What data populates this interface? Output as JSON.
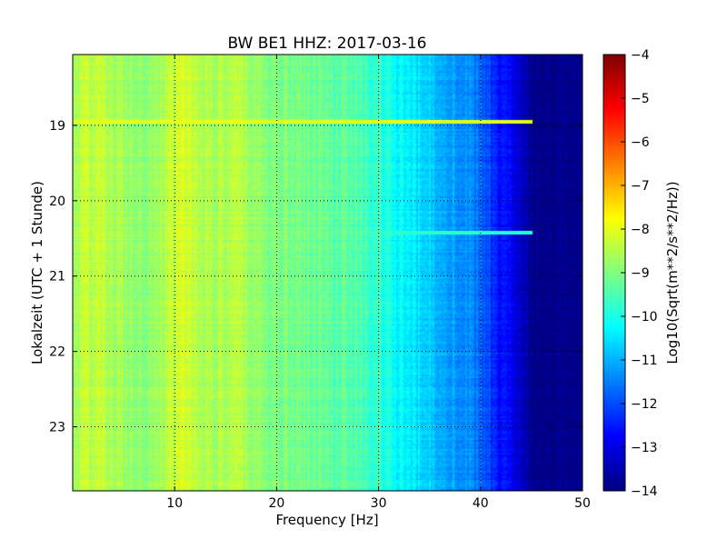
{
  "chart_data": {
    "type": "heatmap",
    "title": "BW BE1 HHZ: 2017-03-16",
    "xlabel": "Frequency [Hz]",
    "ylabel": "Lokalzeit (UTC + 1 Stunde)",
    "xlim": [
      0,
      50
    ],
    "ylim": [
      18.06,
      23.85
    ],
    "y_inverted": true,
    "xticks": [
      10,
      20,
      30,
      40,
      50
    ],
    "yticks": [
      19,
      20,
      21,
      22,
      23
    ],
    "grid": true,
    "colormap": "jet",
    "colorbar": {
      "label": "Log10(Sqrt(m**2/s**2/Hz))",
      "range": [
        -14,
        -4
      ],
      "ticks": [
        -4,
        -5,
        -6,
        -7,
        -8,
        -9,
        -10,
        -11,
        -12,
        -13,
        -14
      ]
    },
    "frequency_profile": {
      "frequency_hz": [
        0,
        2,
        4,
        6,
        8,
        10,
        11,
        12,
        14,
        16,
        18,
        20,
        22,
        24,
        26,
        28,
        30,
        32,
        34,
        36,
        38,
        40,
        41,
        42,
        44,
        45,
        50
      ],
      "log10_amplitude": [
        -8.6,
        -8.3,
        -8.6,
        -8.8,
        -8.7,
        -8.3,
        -8.1,
        -8.4,
        -8.6,
        -8.5,
        -8.8,
        -9.0,
        -9.1,
        -9.2,
        -9.3,
        -9.5,
        -9.8,
        -10.3,
        -10.6,
        -10.9,
        -11.3,
        -11.7,
        -12.3,
        -12.6,
        -13.2,
        -14.0,
        -14.0
      ]
    },
    "events": [
      {
        "time": 18.95,
        "f_start": 0,
        "f_end": 45,
        "log10_amplitude": -8.0
      },
      {
        "time": 20.42,
        "f_start": 20,
        "f_end": 45,
        "log10_amplitude": -9.8
      }
    ]
  }
}
